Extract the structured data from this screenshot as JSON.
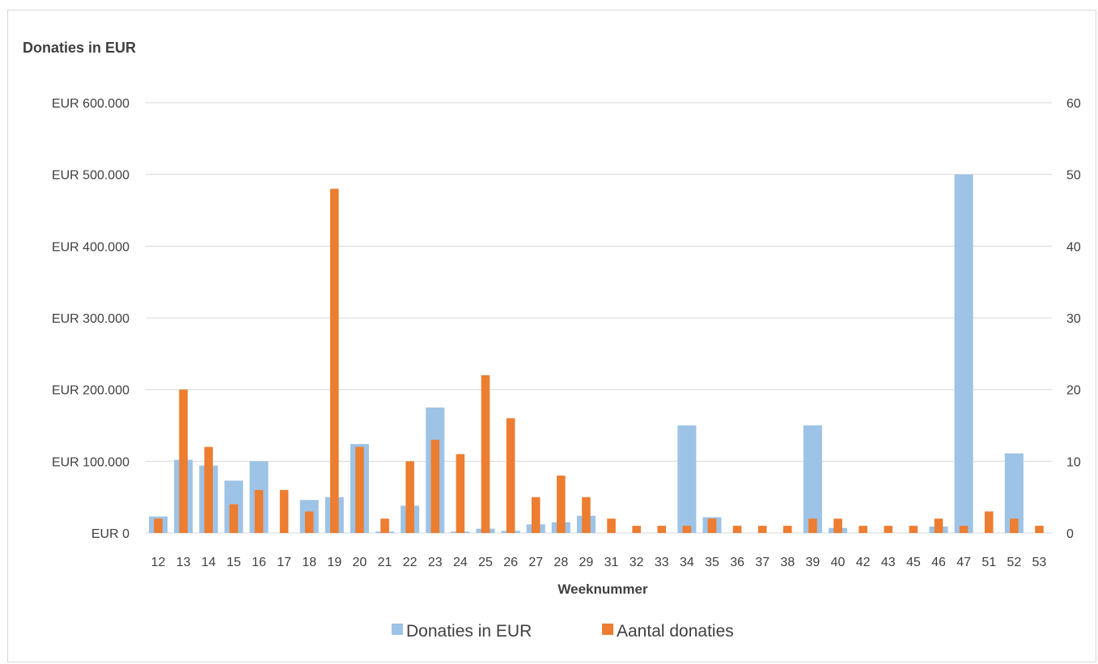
{
  "chart_data": {
    "type": "bar",
    "title": "Donaties in EUR",
    "xlabel": "Weeknummer",
    "ylabel": "",
    "categories": [
      "12",
      "13",
      "14",
      "15",
      "16",
      "17",
      "18",
      "19",
      "20",
      "21",
      "22",
      "23",
      "24",
      "25",
      "26",
      "27",
      "28",
      "29",
      "31",
      "32",
      "33",
      "34",
      "35",
      "36",
      "37",
      "38",
      "39",
      "40",
      "42",
      "43",
      "45",
      "46",
      "47",
      "51",
      "52",
      "53"
    ],
    "series": [
      {
        "name": "Donaties in EUR",
        "axis": "left",
        "color": "#9dc3e6",
        "values": [
          23000,
          102000,
          94000,
          73000,
          100000,
          0,
          46000,
          50000,
          124000,
          2000,
          38000,
          175000,
          2000,
          6000,
          3000,
          12000,
          15000,
          24000,
          0,
          0,
          0,
          150000,
          22000,
          0,
          0,
          0,
          150000,
          7000,
          0,
          0,
          0,
          9000,
          500000,
          0,
          111000,
          0
        ]
      },
      {
        "name": "Aantal donaties",
        "axis": "right",
        "color": "#ed7d31",
        "values": [
          2,
          20,
          12,
          4,
          6,
          6,
          3,
          48,
          12,
          2,
          10,
          13,
          11,
          22,
          16,
          5,
          8,
          5,
          2,
          1,
          1,
          1,
          2,
          1,
          1,
          1,
          2,
          2,
          1,
          1,
          1,
          2,
          1,
          3,
          2,
          1
        ]
      }
    ],
    "y_left": {
      "ylim": [
        0,
        600000
      ],
      "ticks": [
        0,
        100000,
        200000,
        300000,
        400000,
        500000,
        600000
      ],
      "tick_labels": [
        "EUR 0",
        "EUR 100.000",
        "EUR 200.000",
        "EUR 300.000",
        "EUR 400.000",
        "EUR 500.000",
        "EUR 600.000"
      ]
    },
    "y_right": {
      "ylim": [
        0,
        60
      ],
      "ticks": [
        0,
        10,
        20,
        30,
        40,
        50,
        60
      ],
      "tick_labels": [
        "0",
        "10",
        "20",
        "30",
        "40",
        "50",
        "60"
      ]
    },
    "grid": true,
    "legend_position": "bottom",
    "gridline_color": "#d9d9d9"
  }
}
